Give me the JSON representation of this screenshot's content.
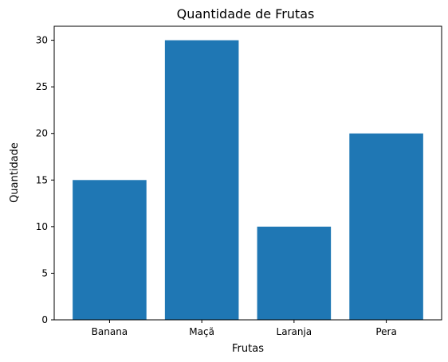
{
  "chart_data": {
    "type": "bar",
    "title": "Quantidade de Frutas",
    "xlabel": "Frutas",
    "ylabel": "Quantidade",
    "categories": [
      "Banana",
      "Maçã",
      "Laranja",
      "Pera"
    ],
    "values": [
      15,
      30,
      10,
      20
    ],
    "ylim": [
      0,
      31.5
    ],
    "yticks": [
      0,
      5,
      10,
      15,
      20,
      25,
      30
    ],
    "bar_color": "#1f77b4",
    "grid": false,
    "legend": "none"
  }
}
